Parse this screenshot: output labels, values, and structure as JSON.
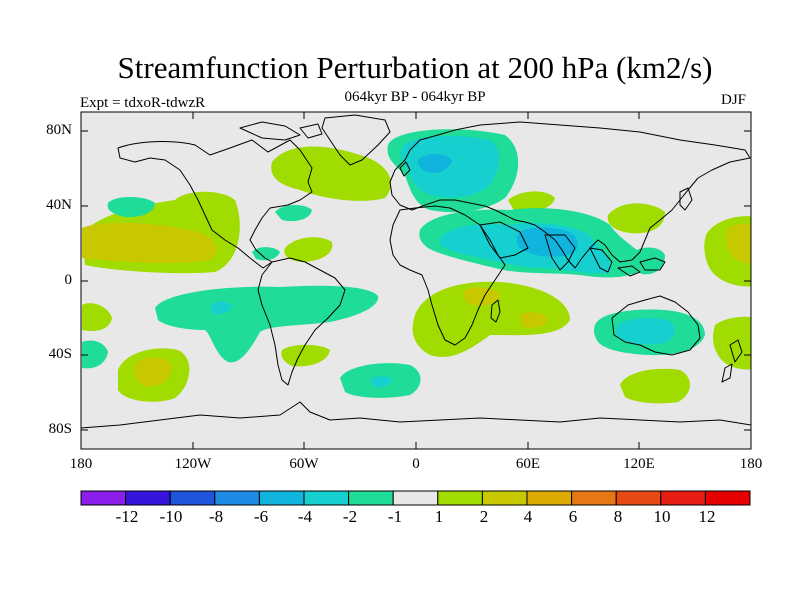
{
  "title": "Streamfunction Perturbation at 200 hPa (km2/s)",
  "subtitle": "064kyr BP - 064kyr BP",
  "experiment": "Expt = tdxoR-tdwzR",
  "season": "DJF",
  "map": {
    "projection": "cylindrical-equidistant",
    "lon_range": [
      -180,
      180
    ],
    "lat_range": [
      -90,
      90
    ],
    "background_color": "#e8e8e8",
    "x_tick_labels": [
      "180",
      "120W",
      "60W",
      "0",
      "60E",
      "120E",
      "180"
    ],
    "y_tick_labels": [
      "80N",
      "40N",
      "0",
      "40S",
      "80S"
    ]
  },
  "colorbar": {
    "labels": [
      "-12",
      "-10",
      "-8",
      "-6",
      "-4",
      "-2",
      "-1",
      "1",
      "2",
      "4",
      "6",
      "8",
      "10",
      "12"
    ],
    "colors": [
      "#8c1eeb",
      "#3614dc",
      "#1f55dc",
      "#1e8ce6",
      "#11b4dc",
      "#16d0d0",
      "#1fdc99",
      "#e8e8e8",
      "#a0dc00",
      "#c8c800",
      "#dcaa00",
      "#e67814",
      "#e64b14",
      "#e61e14",
      "#e60000"
    ]
  },
  "anomalies": [
    {
      "region": "North Pacific",
      "sign": "positive",
      "level": "1 to 2"
    },
    {
      "region": "Subtropical North Pacific",
      "sign": "positive",
      "level": "2 to 4"
    },
    {
      "region": "North America",
      "sign": "positive",
      "level": "1 to 2"
    },
    {
      "region": "North Atlantic / Europe",
      "sign": "negative",
      "level": "-1 to -4"
    },
    {
      "region": "South Asia / Indian Ocean",
      "sign": "negative",
      "level": "-2 to -4"
    },
    {
      "region": "Tropical South America / South Atlantic",
      "sign": "negative",
      "level": "-1 to -2"
    },
    {
      "region": "Southern Africa",
      "sign": "positive",
      "level": "1 to 4"
    },
    {
      "region": "Australia",
      "sign": "negative",
      "level": "-1 to -4"
    },
    {
      "region": "South Pacific",
      "sign": "positive",
      "level": "1 to 4"
    },
    {
      "region": "Southern Ocean near 55S 30W",
      "sign": "negative",
      "level": "-1 to -4"
    },
    {
      "region": "Southern Ocean near 55S 120E",
      "sign": "positive",
      "level": "1 to 2"
    },
    {
      "region": "Western Pacific near 20N 170E",
      "sign": "positive",
      "level": "1 to 4"
    }
  ]
}
